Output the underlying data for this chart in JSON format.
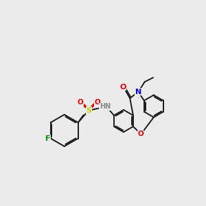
{
  "background_color": "#ebebeb",
  "bond_color": "#1a1a1a",
  "lw": 1.4,
  "atom_colors": {
    "N": "#0000ee",
    "O": "#ee0000",
    "S": "#cccc00",
    "F": "#009900",
    "H": "#888888"
  },
  "figsize": [
    3.0,
    3.0
  ],
  "dpi": 100
}
